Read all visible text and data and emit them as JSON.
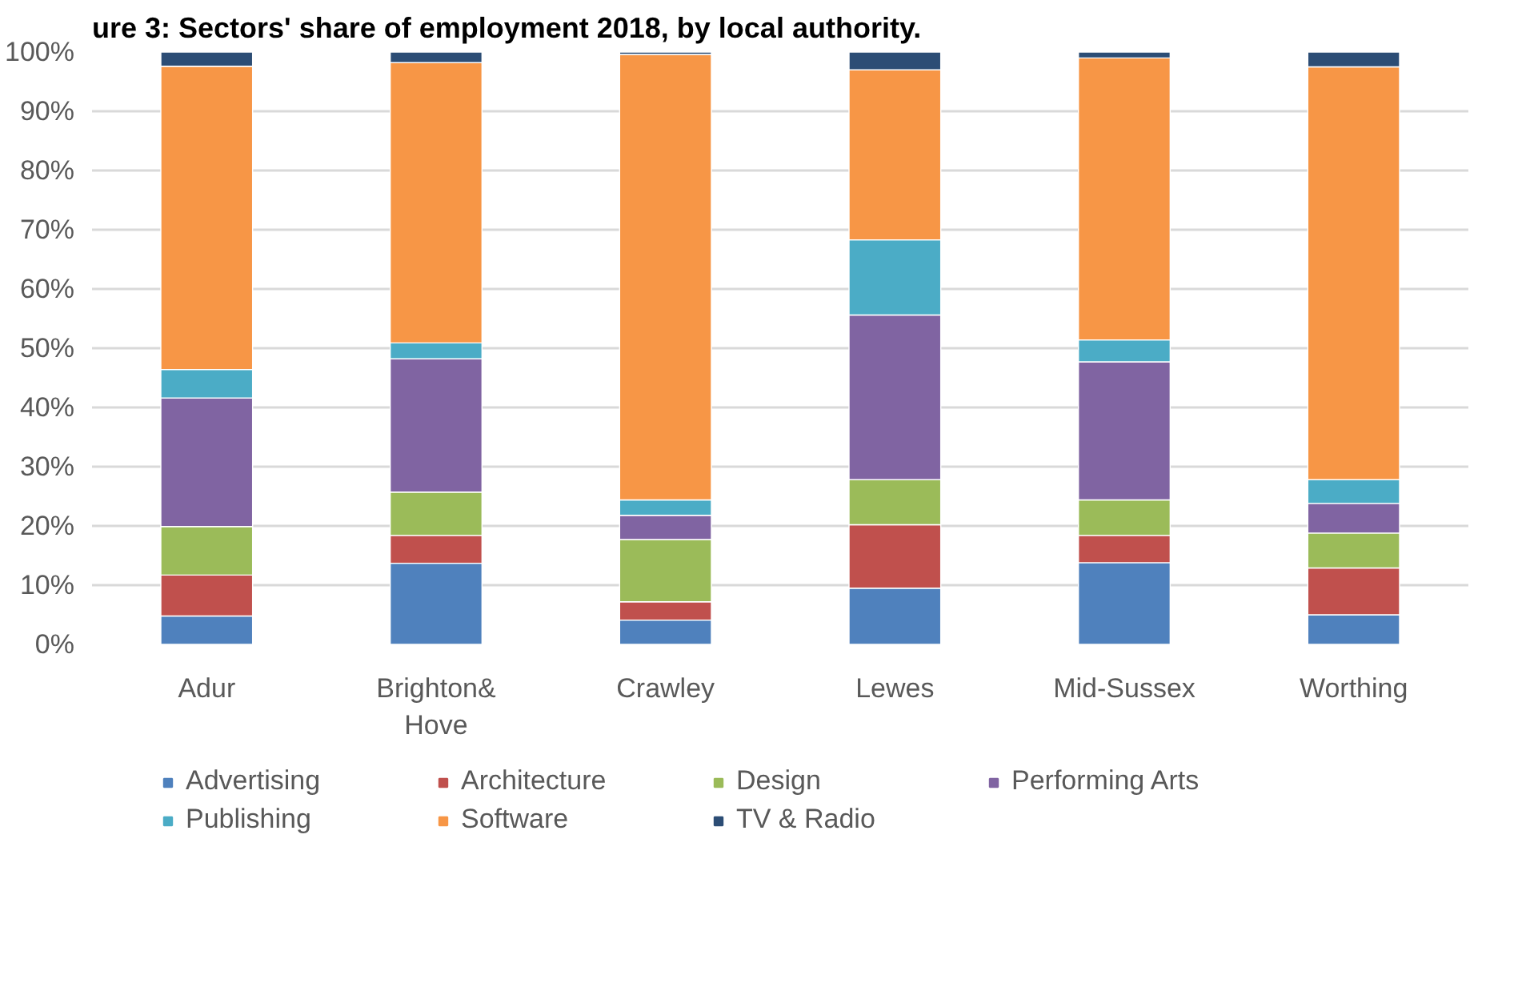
{
  "chart_data": {
    "type": "bar",
    "stacked": true,
    "title": "ure 3: Sectors' share of employment 2018, by local authority.",
    "categories": [
      "Adur",
      "Brighton& Hove",
      "Crawley",
      "Lewes",
      "Mid-Sussex",
      "Worthing"
    ],
    "series": [
      {
        "name": "Advertising",
        "color": "#4f81bd",
        "values": [
          4.8,
          13.7,
          4.1,
          9.5,
          13.8,
          5.0
        ]
      },
      {
        "name": "Architecture",
        "color": "#c0504d",
        "values": [
          6.9,
          4.7,
          3.1,
          10.7,
          4.6,
          7.9
        ]
      },
      {
        "name": "Design",
        "color": "#9bbb59",
        "values": [
          8.2,
          7.3,
          10.5,
          7.6,
          6.0,
          5.9
        ]
      },
      {
        "name": "Performing Arts",
        "color": "#8064a2",
        "values": [
          21.7,
          22.5,
          4.1,
          27.8,
          23.3,
          5.0
        ]
      },
      {
        "name": "Publishing",
        "color": "#4bacc6",
        "values": [
          4.8,
          2.7,
          2.6,
          12.7,
          3.7,
          4.0
        ]
      },
      {
        "name": "Software",
        "color": "#f79646",
        "values": [
          51.2,
          47.3,
          75.2,
          28.7,
          47.6,
          69.7
        ]
      },
      {
        "name": "TV & Radio",
        "color": "#2c4d75",
        "values": [
          2.4,
          1.8,
          0.4,
          3.0,
          1.0,
          2.5
        ]
      }
    ],
    "ylim": [
      0,
      100
    ],
    "yticks": [
      {
        "value": 0,
        "label": "0%"
      },
      {
        "value": 10,
        "label": "10%"
      },
      {
        "value": 20,
        "label": "20%"
      },
      {
        "value": 30,
        "label": "30%"
      },
      {
        "value": 40,
        "label": "40%"
      },
      {
        "value": 50,
        "label": "50%"
      },
      {
        "value": 60,
        "label": "60%"
      },
      {
        "value": 70,
        "label": "70%"
      },
      {
        "value": 80,
        "label": "80%"
      },
      {
        "value": 90,
        "label": "90%"
      },
      {
        "value": 100,
        "label": "100%"
      }
    ],
    "grid": "y",
    "legend": "bottom"
  }
}
